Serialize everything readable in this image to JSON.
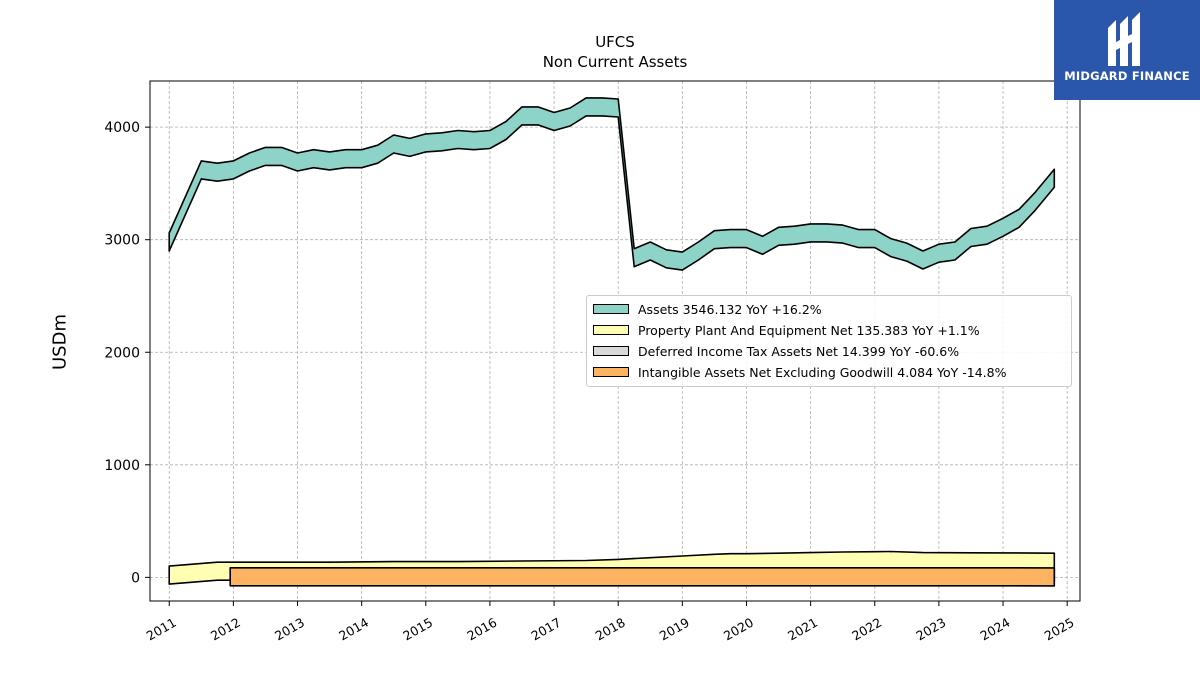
{
  "header": {
    "title": "UFCS",
    "subtitle": "Non Current  Assets"
  },
  "logo": {
    "text": "MIDGARD FINANCE",
    "background": "#2b57ab"
  },
  "chart_data": {
    "type": "area",
    "ylabel": "USDm",
    "xlim": [
      2010.7,
      2025.2
    ],
    "ylim": [
      -210,
      4410
    ],
    "yticks": [
      0,
      1000,
      2000,
      3000,
      4000
    ],
    "xticks": [
      "2011",
      "2012",
      "2013",
      "2014",
      "2015",
      "2016",
      "2017",
      "2018",
      "2019",
      "2020",
      "2021",
      "2022",
      "2023",
      "2024",
      "2025"
    ],
    "grid": true,
    "legend_position": "center-right",
    "series": [
      {
        "name": "Assets",
        "legend": "Assets  3546.132 YoY +16.2%",
        "color": "#8dd3c7",
        "x": [
          2011.0,
          2011.5,
          2011.75,
          2012.0,
          2012.25,
          2012.5,
          2012.75,
          2013.0,
          2013.25,
          2013.5,
          2013.75,
          2014.0,
          2014.25,
          2014.5,
          2014.75,
          2015.0,
          2015.25,
          2015.5,
          2015.75,
          2016.0,
          2016.25,
          2016.5,
          2016.75,
          2017.0,
          2017.25,
          2017.5,
          2017.75,
          2018.0,
          2018.25,
          2018.5,
          2018.75,
          2019.0,
          2019.25,
          2019.5,
          2019.75,
          2020.0,
          2020.25,
          2020.5,
          2020.75,
          2021.0,
          2021.25,
          2021.5,
          2021.75,
          2022.0,
          2022.25,
          2022.5,
          2022.75,
          2023.0,
          2023.25,
          2023.5,
          2023.75,
          2024.0,
          2024.25,
          2024.5,
          2024.8
        ],
        "values": [
          2980,
          3620,
          3600,
          3620,
          3690,
          3740,
          3740,
          3690,
          3720,
          3700,
          3720,
          3720,
          3760,
          3850,
          3820,
          3860,
          3870,
          3890,
          3880,
          3890,
          3970,
          4100,
          4100,
          4050,
          4090,
          4180,
          4180,
          4170,
          2840,
          2900,
          2830,
          2810,
          2900,
          3000,
          3010,
          3010,
          2950,
          3030,
          3040,
          3060,
          3060,
          3050,
          3010,
          3010,
          2930,
          2890,
          2820,
          2880,
          2900,
          3020,
          3040,
          3110,
          3190,
          3340,
          3546
        ]
      },
      {
        "name": "Property Plant And Equipment Net",
        "legend": "Property Plant And Equipment Net  135.383 YoY +1.1%",
        "color": "#ffffb3",
        "x": [
          2011.0,
          2011.75,
          2012.5,
          2013.5,
          2014.5,
          2015.5,
          2016.5,
          2017.5,
          2018.0,
          2018.5,
          2019.0,
          2019.5,
          2019.75,
          2020.0,
          2020.5,
          2021.0,
          2021.5,
          2022.0,
          2022.25,
          2022.75,
          2023.5,
          2024.0,
          2024.8
        ],
        "values": [
          20,
          55,
          55,
          55,
          60,
          60,
          65,
          70,
          80,
          95,
          110,
          125,
          130,
          130,
          135,
          140,
          145,
          148,
          150,
          140,
          138,
          137,
          135
        ]
      },
      {
        "name": "Deferred Income Tax Assets Net",
        "legend": "Deferred Income Tax Assets Net  14.399 YoY -60.6%",
        "color": "#d9d9d9",
        "x": [
          2018.0,
          2018.5,
          2019.0,
          2019.5,
          2020.0,
          2020.5,
          2021.0,
          2021.5,
          2022.0,
          2022.5,
          2022.75,
          2023.0,
          2023.5,
          2023.75,
          2024.0,
          2024.5,
          2024.8
        ],
        "values": [
          -30,
          -30,
          -25,
          -25,
          -20,
          -15,
          -15,
          -10,
          0,
          5,
          20,
          10,
          30,
          40,
          20,
          35,
          14
        ]
      },
      {
        "name": "Intangible Assets Net Excluding Goodwill",
        "legend": "Intangible Assets Net Excluding Goodwill  4.084 YoY -14.8%",
        "color": "#fdb462",
        "x": [
          2011.95,
          2013.0,
          2014.0,
          2015.0,
          2016.0,
          2017.0,
          2018.0,
          2019.0,
          2020.0,
          2021.0,
          2022.0,
          2023.0,
          2024.0,
          2024.8
        ],
        "values": [
          5,
          5,
          5,
          5,
          5,
          5,
          5,
          5,
          5,
          5,
          5,
          5,
          5,
          4
        ]
      }
    ]
  }
}
